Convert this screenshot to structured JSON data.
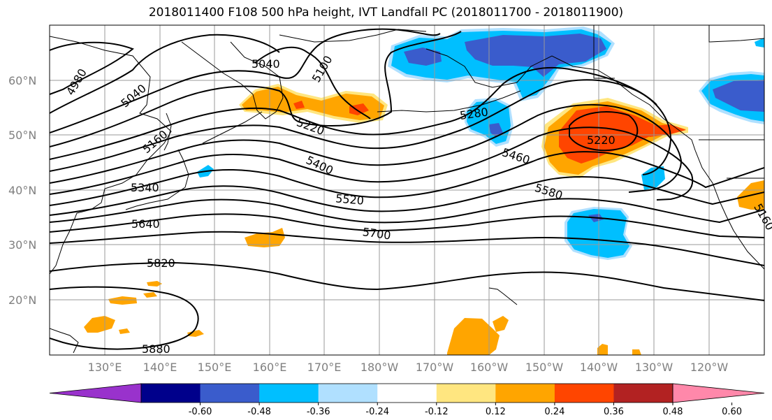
{
  "title": "2018011400 F108 500 hPa height, IVT Landfall PC (2018011700 - 2018011900)",
  "lat_labels": [
    "60°N",
    "50°N",
    "40°N",
    "30°N",
    "20°N"
  ],
  "lon_labels": [
    "130°E",
    "140°E",
    "150°E",
    "160°E",
    "170°E",
    "180°W",
    "170°W",
    "160°W",
    "150°W",
    "140°W",
    "130°W",
    "120°W"
  ],
  "contour_labels": [
    "4980",
    "5040",
    "5040",
    "5100",
    "5160",
    "5220",
    "5220",
    "5280",
    "5340",
    "5400",
    "5460",
    "5520",
    "5580",
    "5640",
    "5700",
    "5820",
    "5880",
    "5160"
  ],
  "colorbar": {
    "colors": [
      "#9932cc",
      "#00008b",
      "#3a5ccc",
      "#00bfff",
      "#b0e0ff",
      "#ffffff",
      "#ffe680",
      "#ffa500",
      "#ff4500",
      "#b22222",
      "#ff88aa"
    ],
    "tick_labels": [
      "-0.60",
      "-0.48",
      "-0.36",
      "-0.24",
      "-0.12",
      "0.12",
      "0.24",
      "0.36",
      "0.48",
      "0.60"
    ]
  },
  "map_colors": {
    "positive_light": "#ffe680",
    "positive_mid": "#ffa500",
    "positive_strong": "#ff4500",
    "negative_light": "#b0e0ff",
    "negative_mid": "#00bfff",
    "negative_strong": "#3a5ccc"
  }
}
